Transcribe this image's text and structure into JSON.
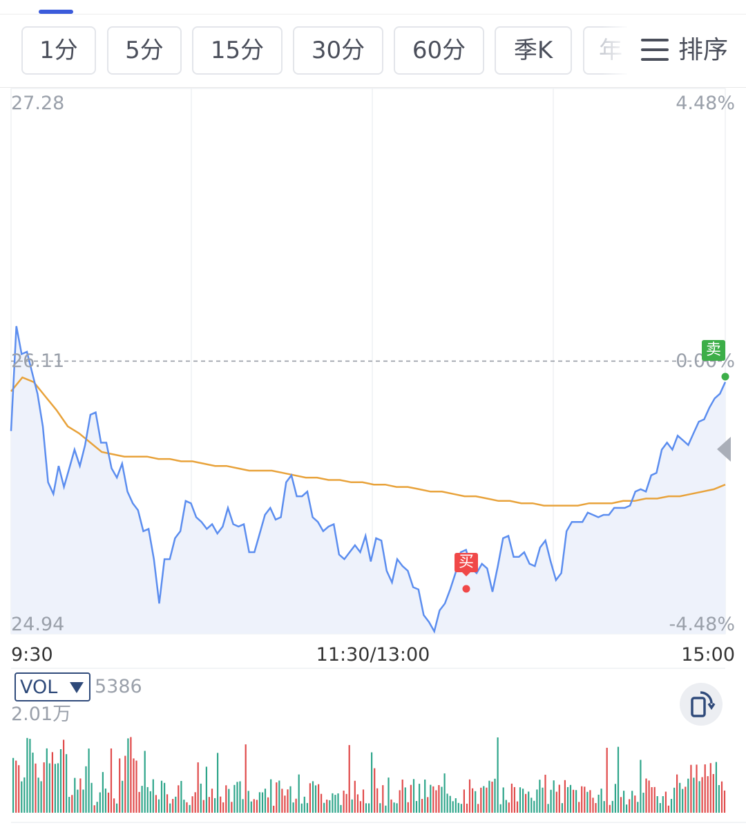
{
  "period_tabs": [
    "1分",
    "5分",
    "15分",
    "30分",
    "60分",
    "季K",
    "年"
  ],
  "sort": {
    "label": "排序",
    "icon": "menu-lines-icon"
  },
  "colors": {
    "price_line": "#5b8def",
    "avg_line": "#e8a23a",
    "area_fill": "#eef2fb",
    "grid": "#e6e8ec",
    "up_volume": "#e04a4a",
    "down_volume": "#2ea58a",
    "buy": "#f04848",
    "sell": "#3cae48"
  },
  "markers": {
    "buy_label": "买",
    "sell_label": "卖"
  },
  "volume": {
    "indicator": "VOL",
    "current": "5386",
    "max_label": "2.01万",
    "rotate_icon": "rotate-screen-icon",
    "collapse_icon": "triangle-down-icon"
  },
  "chart_data": {
    "type": "line",
    "title": "",
    "y_axis_left": {
      "top": "27.28",
      "mid": "26.11",
      "bottom": "24.94"
    },
    "y_axis_right": {
      "top": "4.48%",
      "mid": "0.00%",
      "bottom": "-4.48%"
    },
    "x_ticks": [
      "9:30",
      "11:30/13:00",
      "15:00"
    ],
    "ylim": [
      24.94,
      27.28
    ],
    "prev_close": 26.11,
    "grid": true,
    "series": [
      {
        "name": "price",
        "values": [
          25.81,
          26.26,
          26.14,
          26.15,
          26.06,
          25.97,
          25.83,
          25.59,
          25.54,
          25.66,
          25.57,
          25.65,
          25.73,
          25.66,
          25.75,
          25.88,
          25.89,
          25.76,
          25.76,
          25.65,
          25.61,
          25.67,
          25.55,
          25.5,
          25.47,
          25.38,
          25.39,
          25.26,
          25.07,
          25.26,
          25.26,
          25.35,
          25.38,
          25.51,
          25.5,
          25.44,
          25.42,
          25.39,
          25.41,
          25.37,
          25.4,
          25.48,
          25.41,
          25.4,
          25.41,
          25.29,
          25.29,
          25.37,
          25.45,
          25.48,
          25.43,
          25.44,
          25.59,
          25.62,
          25.53,
          25.53,
          25.55,
          25.44,
          25.42,
          25.38,
          25.4,
          25.41,
          25.28,
          25.26,
          25.29,
          25.32,
          25.29,
          25.36,
          25.25,
          25.35,
          25.34,
          25.21,
          25.16,
          25.26,
          25.23,
          25.21,
          25.14,
          25.13,
          25.02,
          24.99,
          24.95,
          25.04,
          25.07,
          25.13,
          25.2,
          25.29,
          25.3,
          25.22,
          25.2,
          25.24,
          25.22,
          25.12,
          25.23,
          25.35,
          25.36,
          25.27,
          25.27,
          25.29,
          25.24,
          25.23,
          25.31,
          25.34,
          25.25,
          25.17,
          25.2,
          25.38,
          25.42,
          25.42,
          25.42,
          25.46,
          25.45,
          25.44,
          25.45,
          25.45,
          25.48,
          25.48,
          25.48,
          25.49,
          25.55,
          25.56,
          25.55,
          25.62,
          25.63,
          25.73,
          25.76,
          25.73,
          25.79,
          25.77,
          25.75,
          25.8,
          25.85,
          25.86,
          25.91,
          25.95,
          25.97,
          26.02
        ],
        "note_x": "evenly spaced samples from 9:30 to 15:00"
      },
      {
        "name": "average",
        "values": [
          25.98,
          26.04,
          26.02,
          25.96,
          25.9,
          25.83,
          25.8,
          25.76,
          25.72,
          25.71,
          25.7,
          25.7,
          25.7,
          25.69,
          25.69,
          25.68,
          25.68,
          25.67,
          25.66,
          25.66,
          25.65,
          25.64,
          25.64,
          25.64,
          25.63,
          25.62,
          25.61,
          25.61,
          25.6,
          25.6,
          25.59,
          25.59,
          25.58,
          25.58,
          25.57,
          25.57,
          25.56,
          25.55,
          25.55,
          25.54,
          25.53,
          25.53,
          25.52,
          25.51,
          25.51,
          25.5,
          25.5,
          25.49,
          25.49,
          25.49,
          25.49,
          25.5,
          25.5,
          25.5,
          25.51,
          25.51,
          25.52,
          25.52,
          25.53,
          25.53,
          25.54,
          25.55,
          25.56,
          25.58
        ]
      }
    ],
    "volume": {
      "max": 20100,
      "current": 5386
    }
  }
}
